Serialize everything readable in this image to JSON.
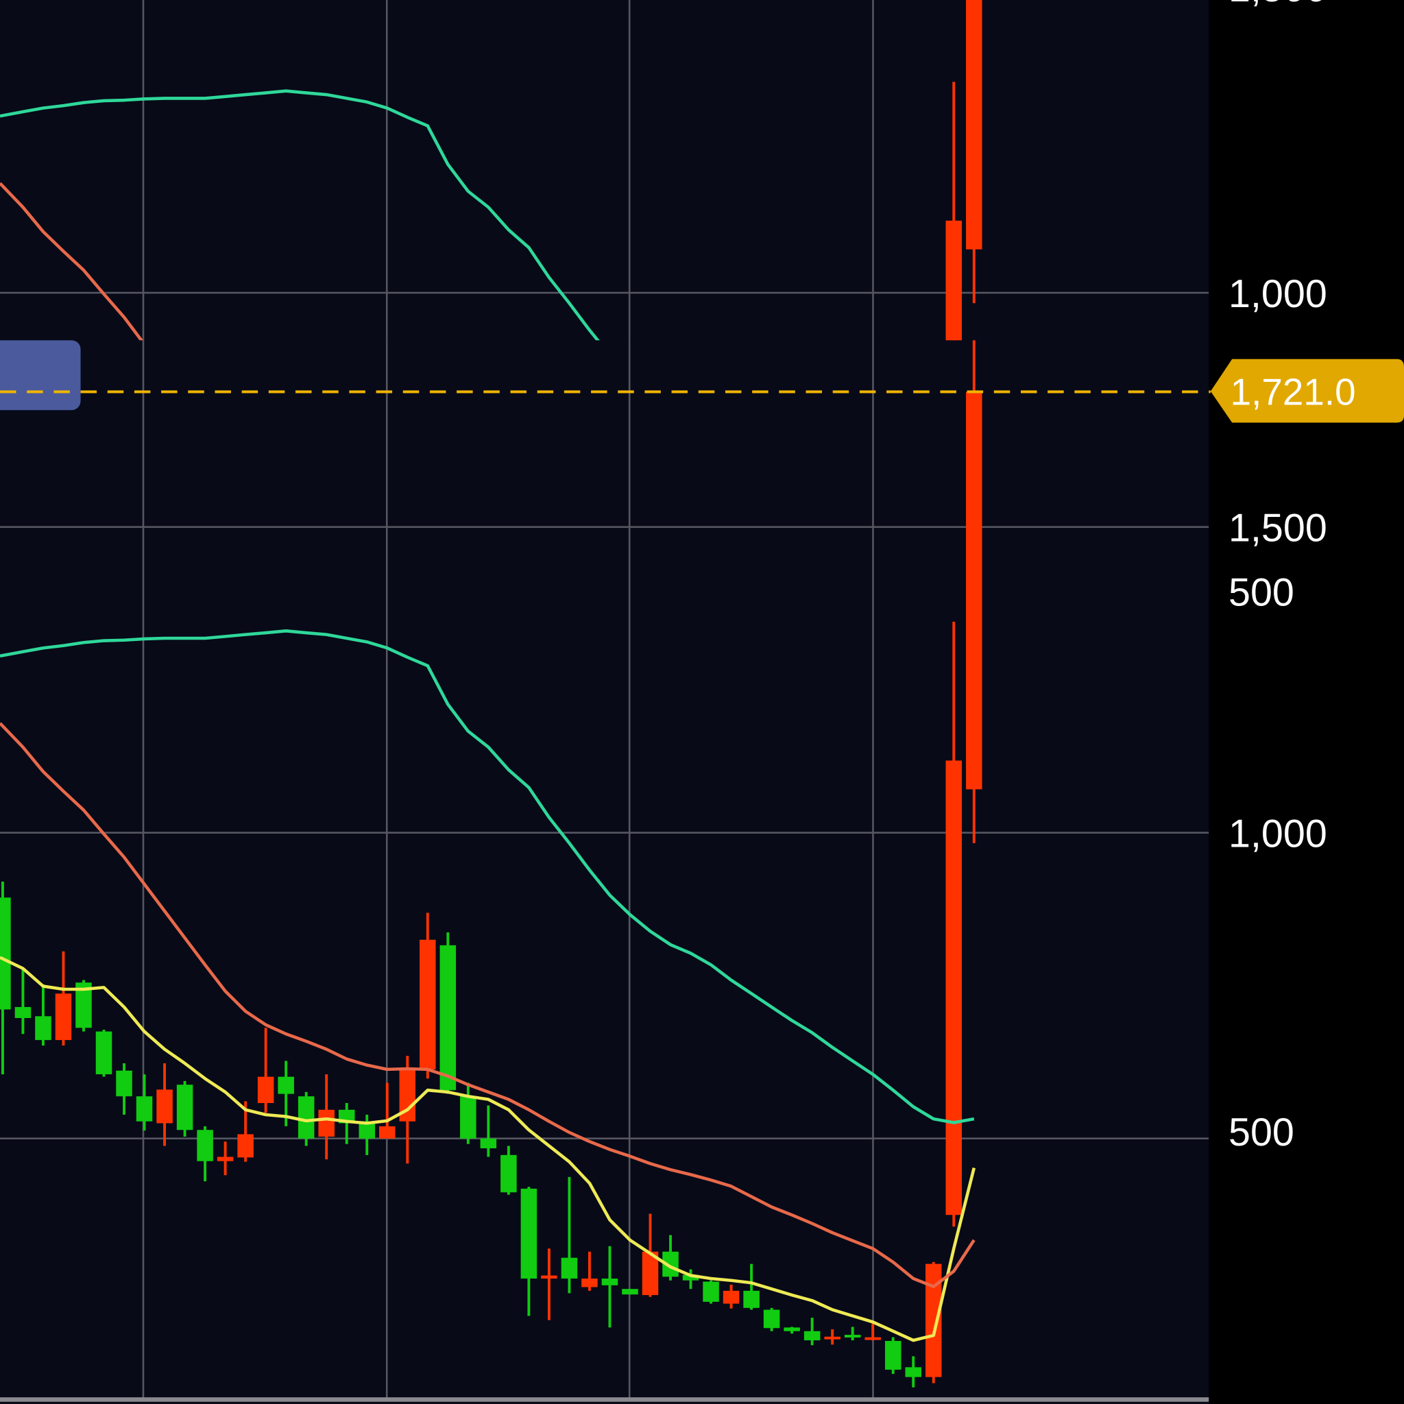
{
  "chart_data": {
    "type": "candlestick",
    "title": "",
    "xlabel": "",
    "ylabel": "",
    "ylim": [
      75,
      2362
    ],
    "grid": true,
    "y_ticks": [
      {
        "value": 500,
        "label": "500"
      },
      {
        "value": 1000,
        "label": "1,000"
      },
      {
        "value": 1500,
        "label": "1,500"
      }
    ],
    "current_price": {
      "value": 1721.0,
      "label": "1,721.0"
    },
    "colors": {
      "up": "#ff3300",
      "down": "#11cc11",
      "background": "#080a18",
      "axis_background": "#000000",
      "grid": "#55565f",
      "price_line": "#f0b400",
      "ma_yellow": "#eeea55",
      "ma_orange": "#e8694a",
      "ma_teal": "#2fd89a",
      "overlay_box": "#4a5a9c"
    },
    "candles_ohlc": [
      [
        894,
        920,
        605,
        711
      ],
      [
        715,
        776,
        671,
        697
      ],
      [
        700,
        752,
        652,
        661
      ],
      [
        661,
        806,
        652,
        737
      ],
      [
        755,
        759,
        675,
        681
      ],
      [
        675,
        678,
        601,
        605
      ],
      [
        611,
        623,
        539,
        569
      ],
      [
        569,
        605,
        513,
        528
      ],
      [
        525,
        623,
        488,
        580
      ],
      [
        588,
        594,
        503,
        514
      ],
      [
        514,
        520,
        430,
        463
      ],
      [
        463,
        495,
        440,
        470
      ],
      [
        469,
        561,
        462,
        507
      ],
      [
        558,
        681,
        542,
        601
      ],
      [
        601,
        627,
        520,
        573
      ],
      [
        569,
        576,
        488,
        500
      ],
      [
        503,
        605,
        466,
        547
      ],
      [
        547,
        558,
        491,
        525
      ],
      [
        528,
        539,
        473,
        500
      ],
      [
        500,
        591,
        500,
        520
      ],
      [
        528,
        635,
        459,
        613
      ],
      [
        613,
        869,
        598,
        825
      ],
      [
        816,
        837,
        573,
        579
      ],
      [
        569,
        591,
        491,
        500
      ],
      [
        500,
        554,
        470,
        484
      ],
      [
        473,
        488,
        408,
        412
      ],
      [
        418,
        421,
        210,
        271
      ],
      [
        271,
        320,
        203,
        276
      ],
      [
        305,
        437,
        247,
        271
      ],
      [
        257,
        315,
        251,
        271
      ],
      [
        271,
        324,
        191,
        260
      ],
      [
        254,
        254,
        245,
        245
      ],
      [
        244,
        377,
        241,
        315
      ],
      [
        315,
        342,
        268,
        274
      ],
      [
        277,
        286,
        254,
        268
      ],
      [
        266,
        268,
        230,
        233
      ],
      [
        230,
        261,
        222,
        251
      ],
      [
        251,
        295,
        220,
        223
      ],
      [
        220,
        223,
        185,
        190
      ],
      [
        191,
        192,
        181,
        185
      ],
      [
        185,
        207,
        162,
        170
      ],
      [
        173,
        188,
        163,
        176
      ],
      [
        179,
        192,
        170,
        175
      ],
      [
        173,
        198,
        170,
        175
      ],
      [
        169,
        175,
        115,
        122
      ],
      [
        126,
        144,
        93,
        110
      ],
      [
        110,
        298,
        100,
        295
      ],
      [
        375,
        1345,
        356,
        1118
      ],
      [
        1071,
        1806,
        983,
        1721
      ]
    ],
    "moving_averages": [
      {
        "color_key": "ma_yellow",
        "values": [
          796,
          778,
          749,
          744,
          744,
          747,
          715,
          675,
          646,
          623,
          598,
          576,
          547,
          539,
          536,
          529,
          532,
          528,
          525,
          529,
          547,
          579,
          576,
          569,
          564,
          547,
          514,
          488,
          462,
          427,
          367,
          334,
          312,
          290,
          276,
          271,
          268,
          264,
          254,
          244,
          235,
          220,
          210,
          200,
          185,
          170,
          178,
          320,
          452
        ]
      },
      {
        "color_key": "ma_orange",
        "values": [
          1179,
          1140,
          1100,
          1068,
          1037,
          998,
          960,
          916,
          872,
          828,
          784,
          741,
          708,
          686,
          671,
          659,
          646,
          630,
          620,
          613,
          614,
          613,
          602,
          588,
          576,
          564,
          547,
          528,
          510,
          495,
          482,
          471,
          459,
          449,
          441,
          432,
          422,
          405,
          388,
          375,
          361,
          346,
          333,
          320,
          298,
          271,
          258,
          283,
          334
        ]
      },
      {
        "color_key": "ma_teal",
        "values": [
          1289,
          1296,
          1302,
          1306,
          1311,
          1314,
          1315,
          1317,
          1318,
          1318,
          1318,
          1321,
          1324,
          1327,
          1330,
          1327,
          1324,
          1318,
          1312,
          1302,
          1287,
          1273,
          1210,
          1166,
          1140,
          1103,
          1074,
          1025,
          983,
          939,
          898,
          866,
          839,
          817,
          803,
          784,
          759,
          737,
          715,
          693,
          673,
          649,
          627,
          605,
          579,
          552,
          532,
          526,
          532
        ]
      }
    ]
  }
}
